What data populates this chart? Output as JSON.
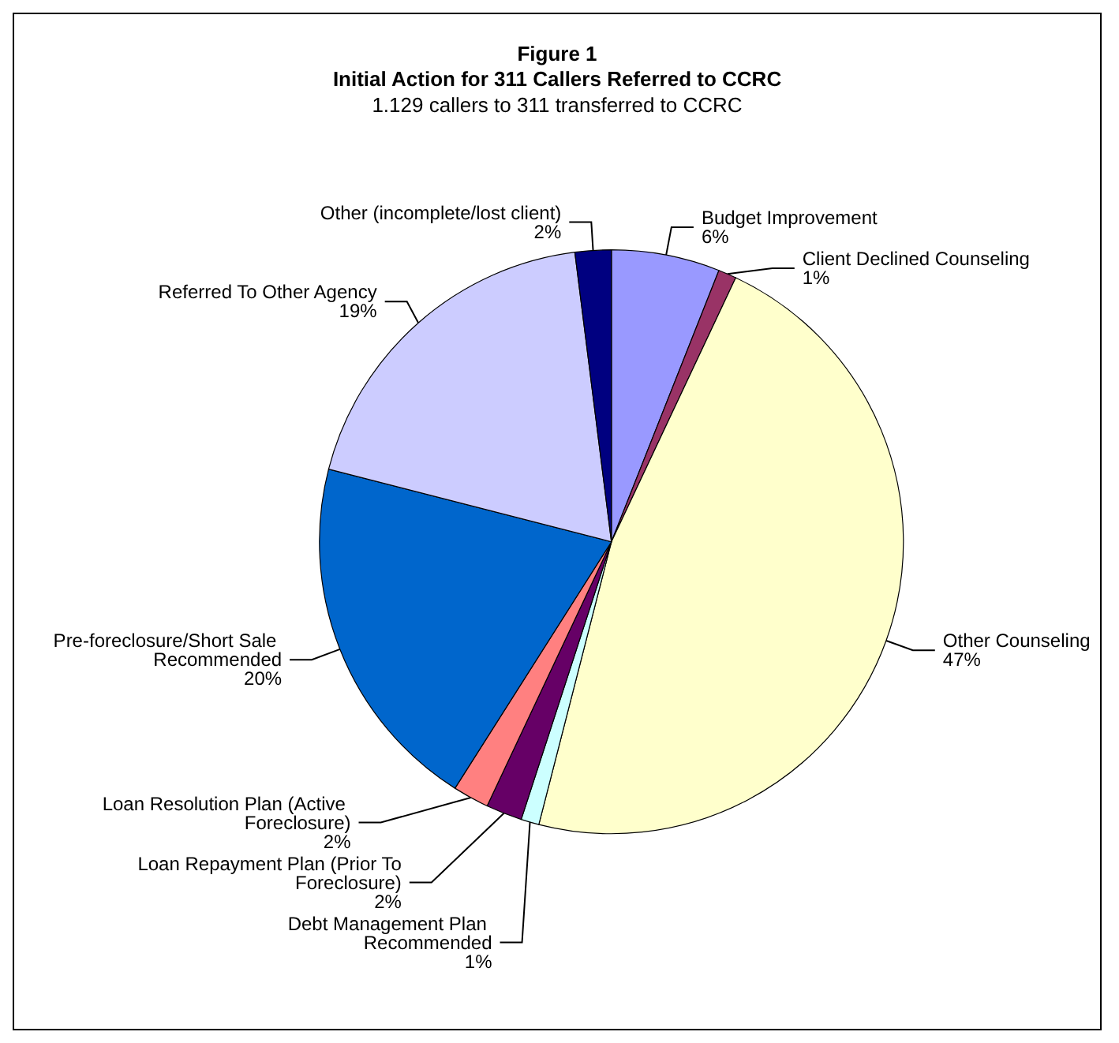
{
  "chart_data": {
    "type": "pie",
    "title": "Figure 1\nInitial Action for 311 Callers Referred to CCRC",
    "subtitle": "1.129 callers to 311 transferred to CCRC",
    "categories": [
      "Budget Improvement",
      "Client Declined Counseling",
      "Other Counseling",
      "Debt Management Plan Recommended",
      "Loan Repayment Plan (Prior To Foreclosure)",
      "Loan Resolution Plan (Active Foreclosure)",
      "Pre-foreclosure/Short Sale Recommended",
      "Referred To Other Agency",
      "Other (incomplete/lost client)"
    ],
    "values": [
      6,
      1,
      47,
      1,
      2,
      2,
      20,
      19,
      2
    ],
    "value_labels": [
      "6%",
      "1%",
      "47%",
      "1%",
      "2%",
      "2%",
      "20%",
      "19%",
      "2%"
    ],
    "colors": [
      "#9999ff",
      "#993366",
      "#ffffcc",
      "#ccffff",
      "#660066",
      "#ff8080",
      "#0066cc",
      "#ccccff",
      "#000080"
    ],
    "legend": false
  }
}
